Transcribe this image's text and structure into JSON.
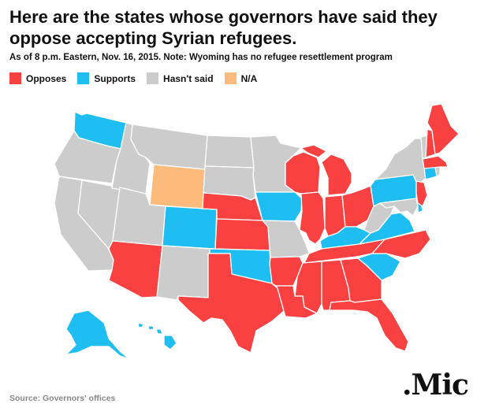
{
  "title": "Here are the states whose governors have said they oppose accepting Syrian refugees.",
  "subtitle": "As of 8 p.m. Eastern, Nov. 16, 2015. Note: Wyoming has no refugee resettlement program",
  "legend": [
    {
      "key": "opposes",
      "label": "Opposes",
      "color": "#f94141"
    },
    {
      "key": "supports",
      "label": "Supports",
      "color": "#1fbef2"
    },
    {
      "key": "unknown",
      "label": "Hasn't said",
      "color": "#cccccc"
    },
    {
      "key": "na",
      "label": "N/A",
      "color": "#fcbb7d"
    }
  ],
  "states": {
    "WA": "supports",
    "OR": "unknown",
    "CA": "unknown",
    "NV": "unknown",
    "ID": "unknown",
    "MT": "unknown",
    "WY": "na",
    "UT": "unknown",
    "AZ": "opposes",
    "CO": "supports",
    "NM": "unknown",
    "ND": "unknown",
    "SD": "unknown",
    "NE": "opposes",
    "KS": "opposes",
    "OK": "supports",
    "TX": "opposes",
    "MN": "unknown",
    "IA": "supports",
    "MO": "unknown",
    "AR": "opposes",
    "LA": "opposes",
    "WI": "opposes",
    "IL": "opposes",
    "MI": "opposes",
    "IN": "opposes",
    "OH": "opposes",
    "KY": "supports",
    "TN": "opposes",
    "MS": "opposes",
    "AL": "opposes",
    "GA": "opposes",
    "FL": "opposes",
    "SC": "supports",
    "NC": "opposes",
    "VA": "supports",
    "WV": "unknown",
    "PA": "supports",
    "NY": "unknown",
    "VT": "unknown",
    "NH": "opposes",
    "ME": "opposes",
    "MA": "opposes",
    "RI": "unknown",
    "CT": "supports",
    "NJ": "opposes",
    "DE": "supports",
    "MD": "unknown",
    "AK": "supports",
    "HI": "supports"
  },
  "source": "Source: Governors' offices",
  "logo": ".Mic"
}
